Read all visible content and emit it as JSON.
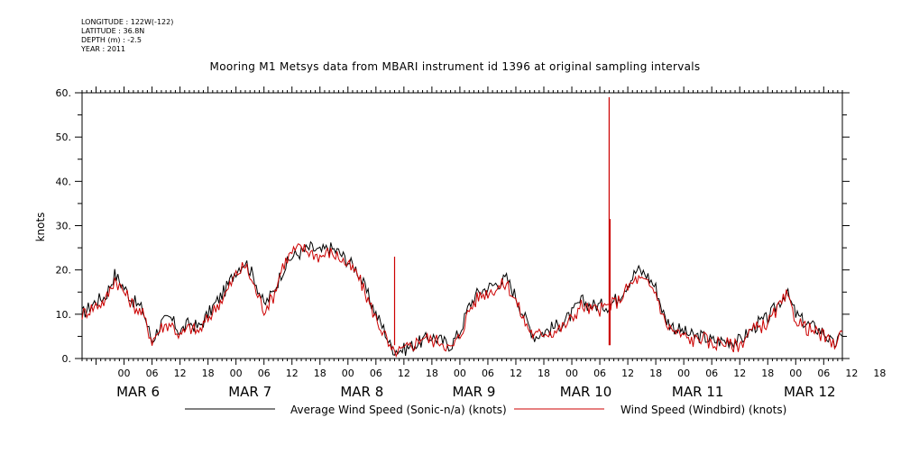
{
  "meta": {
    "longitude": "LONGITUDE : 122W(-122)",
    "latitude": "LATITUDE : 36.8N",
    "depth": "DEPTH (m) : -2.5",
    "year": "YEAR : 2011"
  },
  "chart_data": {
    "type": "line",
    "title": "Mooring M1 Metsys data from MBARI instrument id 1396 at original sampling intervals",
    "ylabel": "knots",
    "xlabel": "",
    "ylim": [
      0,
      60
    ],
    "yticks": [
      0,
      10,
      20,
      30,
      40,
      50,
      60
    ],
    "xlim_hours": [
      -9,
      154
    ],
    "hour_tick_labels": [
      "00",
      "06",
      "12",
      "18",
      "00",
      "06",
      "12",
      "18",
      "00",
      "06",
      "12",
      "18",
      "00",
      "06",
      "12",
      "18",
      "00",
      "06",
      "12",
      "18",
      "00",
      "06",
      "12",
      "18",
      "00",
      "06",
      "12",
      "18"
    ],
    "day_labels": [
      "MAR 6",
      "MAR 7",
      "MAR 8",
      "MAR 9",
      "MAR 10",
      "MAR 11",
      "MAR 12"
    ],
    "grid": false,
    "legend_position": "bottom",
    "series": [
      {
        "name": "Average Wind Speed (Sonic-n/a) (knots)",
        "color": "#000000",
        "points": [
          [
            -9,
            10
          ],
          [
            -6,
            13
          ],
          [
            -4,
            14
          ],
          [
            -2,
            19
          ],
          [
            0,
            16
          ],
          [
            2,
            13
          ],
          [
            4,
            11
          ],
          [
            6,
            4
          ],
          [
            8,
            8
          ],
          [
            10,
            9
          ],
          [
            12,
            6
          ],
          [
            14,
            8
          ],
          [
            16,
            7
          ],
          [
            18,
            10
          ],
          [
            20,
            13
          ],
          [
            22,
            16
          ],
          [
            24,
            20
          ],
          [
            26,
            22
          ],
          [
            28,
            18
          ],
          [
            30,
            12
          ],
          [
            32,
            15
          ],
          [
            34,
            20
          ],
          [
            36,
            23
          ],
          [
            38,
            24
          ],
          [
            40,
            25
          ],
          [
            42,
            24
          ],
          [
            44,
            25
          ],
          [
            46,
            24
          ],
          [
            48,
            22
          ],
          [
            50,
            20
          ],
          [
            52,
            15
          ],
          [
            54,
            10
          ],
          [
            56,
            6
          ],
          [
            57,
            3
          ],
          [
            58,
            2
          ],
          [
            60,
            2
          ],
          [
            62,
            3
          ],
          [
            64,
            4
          ],
          [
            66,
            5
          ],
          [
            68,
            4
          ],
          [
            70,
            3
          ],
          [
            72,
            6
          ],
          [
            74,
            12
          ],
          [
            76,
            15
          ],
          [
            78,
            16
          ],
          [
            80,
            17
          ],
          [
            82,
            18
          ],
          [
            84,
            14
          ],
          [
            86,
            9
          ],
          [
            88,
            5
          ],
          [
            90,
            6
          ],
          [
            92,
            7
          ],
          [
            94,
            8
          ],
          [
            96,
            10
          ],
          [
            98,
            13
          ],
          [
            100,
            12
          ],
          [
            102,
            12
          ],
          [
            104,
            12
          ],
          [
            106,
            14
          ],
          [
            108,
            17
          ],
          [
            110,
            20
          ],
          [
            112,
            19
          ],
          [
            114,
            16
          ],
          [
            116,
            9
          ],
          [
            118,
            7
          ],
          [
            120,
            6
          ],
          [
            122,
            5
          ],
          [
            124,
            5
          ],
          [
            126,
            4
          ],
          [
            128,
            4
          ],
          [
            130,
            4
          ],
          [
            132,
            4
          ],
          [
            134,
            6
          ],
          [
            136,
            8
          ],
          [
            138,
            9
          ],
          [
            140,
            12
          ],
          [
            142,
            15
          ],
          [
            144,
            10
          ],
          [
            146,
            8
          ],
          [
            148,
            7
          ],
          [
            150,
            6
          ],
          [
            152,
            3
          ],
          [
            154,
            5
          ]
        ]
      },
      {
        "name": "Wind Speed (Windbird) (knots)",
        "color": "#cc0000",
        "points": [
          [
            -9,
            10
          ],
          [
            -6,
            12
          ],
          [
            -4,
            13
          ],
          [
            -2,
            18
          ],
          [
            0,
            15
          ],
          [
            2,
            12
          ],
          [
            4,
            10
          ],
          [
            6,
            4
          ],
          [
            8,
            7
          ],
          [
            10,
            8
          ],
          [
            12,
            5
          ],
          [
            14,
            7
          ],
          [
            16,
            6
          ],
          [
            18,
            9
          ],
          [
            20,
            12
          ],
          [
            22,
            15
          ],
          [
            24,
            19
          ],
          [
            26,
            21
          ],
          [
            28,
            16
          ],
          [
            30,
            11
          ],
          [
            32,
            14
          ],
          [
            34,
            21
          ],
          [
            36,
            24
          ],
          [
            38,
            25
          ],
          [
            40,
            24
          ],
          [
            42,
            23
          ],
          [
            44,
            24
          ],
          [
            46,
            23
          ],
          [
            48,
            21
          ],
          [
            50,
            19
          ],
          [
            52,
            14
          ],
          [
            54,
            9
          ],
          [
            56,
            5
          ],
          [
            57,
            2
          ],
          [
            58,
            1
          ],
          [
            60,
            2
          ],
          [
            62,
            3
          ],
          [
            64,
            5
          ],
          [
            66,
            4
          ],
          [
            68,
            4
          ],
          [
            70,
            2
          ],
          [
            72,
            5
          ],
          [
            74,
            11
          ],
          [
            76,
            14
          ],
          [
            78,
            15
          ],
          [
            80,
            16
          ],
          [
            82,
            17
          ],
          [
            84,
            13
          ],
          [
            86,
            8
          ],
          [
            88,
            5
          ],
          [
            90,
            6
          ],
          [
            92,
            6
          ],
          [
            94,
            7
          ],
          [
            96,
            9
          ],
          [
            98,
            12
          ],
          [
            100,
            11
          ],
          [
            102,
            11
          ],
          [
            104,
            12
          ],
          [
            106,
            13
          ],
          [
            108,
            16
          ],
          [
            110,
            18
          ],
          [
            112,
            17
          ],
          [
            114,
            15
          ],
          [
            116,
            8
          ],
          [
            118,
            6
          ],
          [
            120,
            5
          ],
          [
            122,
            4
          ],
          [
            124,
            5
          ],
          [
            126,
            3
          ],
          [
            128,
            4
          ],
          [
            130,
            3
          ],
          [
            132,
            3
          ],
          [
            134,
            6
          ],
          [
            136,
            7
          ],
          [
            138,
            8
          ],
          [
            140,
            11
          ],
          [
            142,
            14
          ],
          [
            144,
            9
          ],
          [
            146,
            7
          ],
          [
            148,
            6
          ],
          [
            150,
            5
          ],
          [
            152,
            3
          ],
          [
            154,
            6
          ]
        ],
        "spikes": [
          [
            58,
            23
          ],
          [
            104,
            59
          ],
          [
            104.2,
            31.5
          ]
        ]
      }
    ]
  }
}
